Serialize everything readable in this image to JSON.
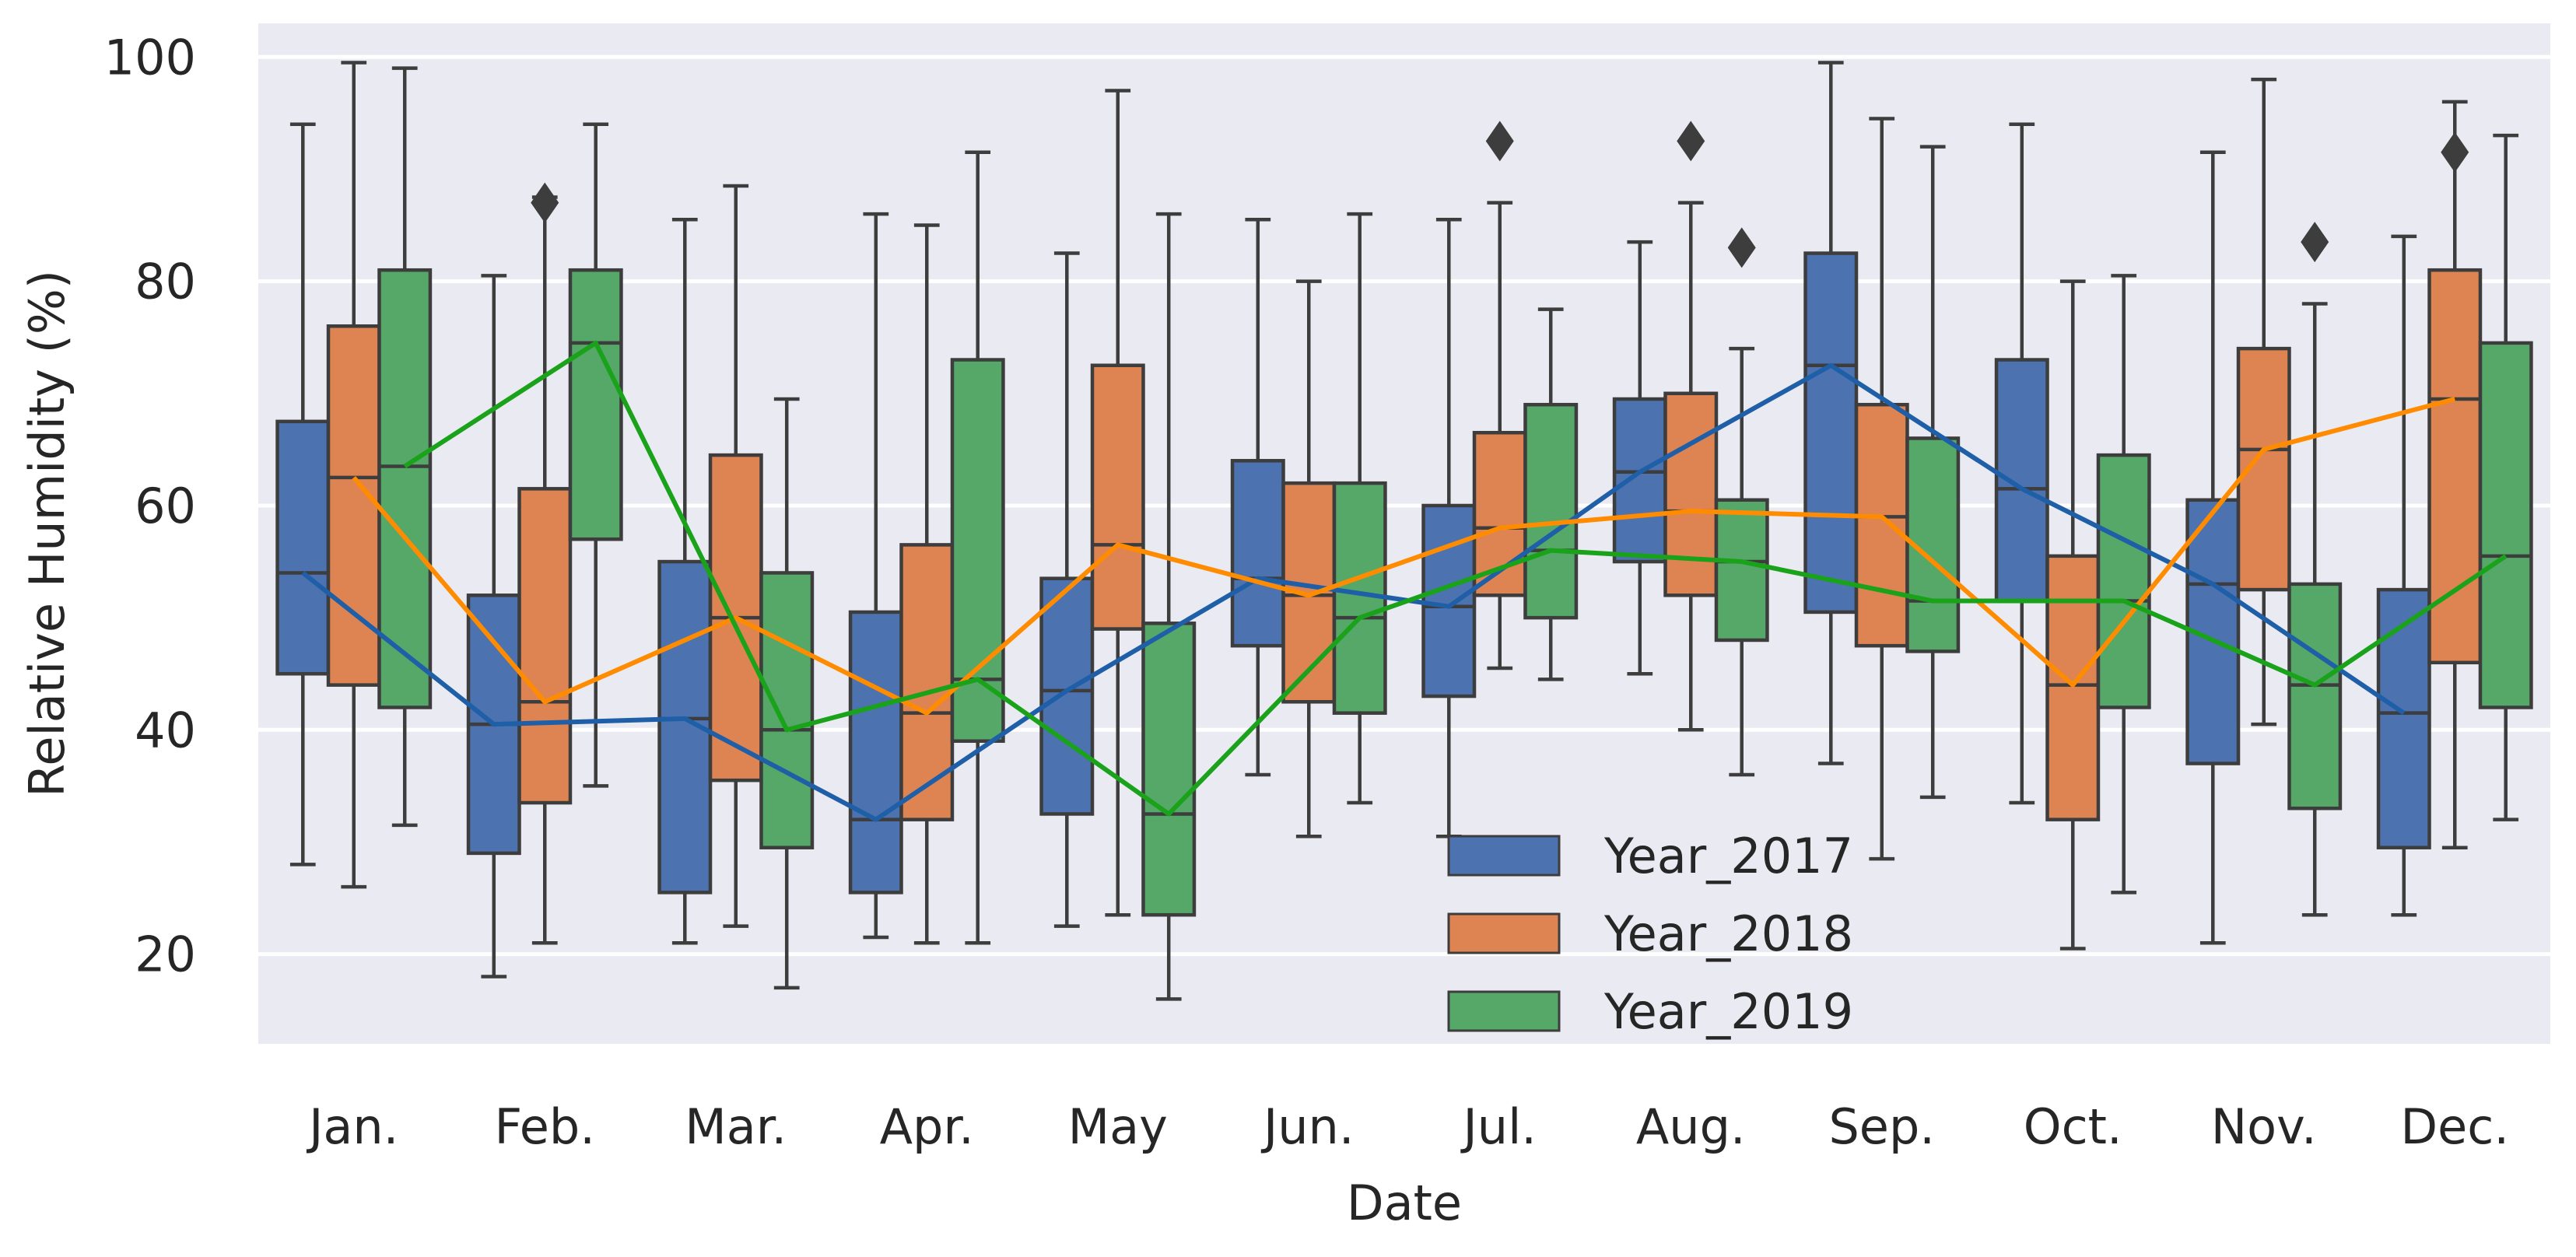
{
  "chart_data": {
    "type": "box",
    "xlabel": "Date",
    "ylabel": "Relative Humidity (%)",
    "ylim": [
      12,
      103
    ],
    "yticks": [
      20,
      40,
      60,
      80,
      100
    ],
    "grid": true,
    "legend_position": "bottom-center",
    "categories": [
      "Jan.",
      "Feb.",
      "Mar.",
      "Apr.",
      "May",
      "Jun.",
      "Jul.",
      "Aug.",
      "Sep.",
      "Oct.",
      "Nov.",
      "Dec."
    ],
    "series": [
      {
        "name": "Year_2017",
        "box_color": "#4c72b0",
        "line_color": "#1f5fa8",
        "whisker_low": [
          28,
          18,
          21,
          21.5,
          22.5,
          36,
          30.5,
          45,
          37,
          33.5,
          21,
          23.5
        ],
        "q1": [
          45,
          29,
          25.5,
          25.5,
          32.5,
          47.5,
          43,
          55,
          50.5,
          51.5,
          37,
          29.5
        ],
        "median": [
          54,
          40.5,
          41,
          32,
          43.5,
          53.5,
          51,
          63,
          72.5,
          61.5,
          53,
          41.5
        ],
        "q3": [
          67.5,
          52,
          55,
          50.5,
          53.5,
          64,
          60,
          69.5,
          82.5,
          73,
          60.5,
          52.5
        ],
        "whisker_high": [
          94,
          80.5,
          85.5,
          86,
          82.5,
          85.5,
          85.5,
          83.5,
          99.5,
          94,
          91.5,
          84
        ],
        "outliers": [
          [],
          [],
          [],
          [],
          [],
          [],
          [],
          [],
          [],
          [],
          [],
          []
        ],
        "mean_line": [
          54,
          40.5,
          41,
          32,
          43.5,
          53.5,
          51,
          63,
          72.5,
          61.5,
          53,
          41.5
        ]
      },
      {
        "name": "Year_2018",
        "box_color": "#dd8452",
        "line_color": "#ff8c00",
        "whisker_low": [
          26,
          21,
          22.5,
          21,
          23.5,
          30.5,
          45.5,
          40,
          28.5,
          20.5,
          40.5,
          29.5
        ],
        "q1": [
          44,
          33.5,
          35.5,
          32,
          49,
          42.5,
          52,
          52,
          47.5,
          32,
          52.5,
          46
        ],
        "median": [
          62.5,
          42.5,
          50,
          41.5,
          56.5,
          52,
          58,
          59.5,
          59,
          44,
          65,
          69.5
        ],
        "q3": [
          76,
          61.5,
          64.5,
          56.5,
          72.5,
          62,
          66.5,
          70,
          69,
          55.5,
          74,
          81
        ],
        "whisker_high": [
          99.5,
          87.5,
          88.5,
          85,
          97,
          80,
          87,
          87,
          94.5,
          80,
          98,
          96
        ],
        "outliers": [
          [],
          [
            87
          ],
          [],
          [],
          [],
          [],
          [
            92.5
          ],
          [
            92.5
          ],
          [],
          [],
          [],
          [
            91.5
          ]
        ],
        "mean_line": [
          62.5,
          42.5,
          50,
          41.5,
          56.5,
          52,
          58,
          59.5,
          59,
          44,
          65,
          69.5
        ]
      },
      {
        "name": "Year_2019",
        "box_color": "#55a868",
        "line_color": "#1aa21a",
        "whisker_low": [
          31.5,
          35,
          17,
          21,
          16,
          33.5,
          44.5,
          36,
          34,
          25.5,
          23.5,
          32
        ],
        "q1": [
          42,
          57,
          29.5,
          39,
          23.5,
          41.5,
          50,
          48,
          47,
          42,
          33,
          42
        ],
        "median": [
          63.5,
          74.5,
          40,
          44.5,
          32.5,
          50,
          56,
          55,
          51.5,
          51.5,
          44,
          55.5
        ],
        "q3": [
          81,
          81,
          54,
          73,
          49.5,
          62,
          69,
          60.5,
          66,
          64.5,
          53,
          74.5
        ],
        "whisker_high": [
          99,
          94,
          69.5,
          91.5,
          86,
          86,
          77.5,
          74,
          92,
          80.5,
          78,
          93
        ],
        "outliers": [
          [],
          [],
          [],
          [],
          [],
          [],
          [],
          [
            83
          ],
          [],
          [],
          [
            83.5
          ],
          []
        ],
        "mean_line": [
          63.5,
          74.5,
          40,
          44.5,
          32.5,
          50,
          56,
          55,
          51.5,
          51.5,
          44,
          55.5
        ]
      }
    ]
  }
}
